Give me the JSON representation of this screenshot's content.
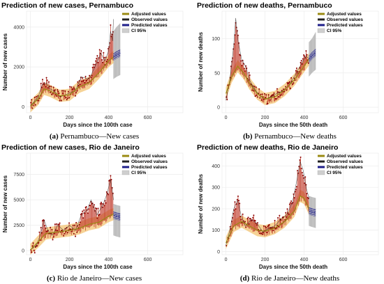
{
  "colors": {
    "adjusted": "#9a8a12",
    "observed": "#222222",
    "predicted": "#1e1e8a",
    "ci": "#cfcfcf",
    "band": "#f2c06a",
    "bars": "#c03a2a",
    "points": "#8b0000"
  },
  "legend": [
    "Adjusted values",
    "Observed values",
    "Predicted values",
    "CI 95%"
  ],
  "chart_data": [
    {
      "type": "line",
      "title": "Prediction of new cases, Pernambuco",
      "xlabel": "Days since the 100th case",
      "ylabel": "Number of new cases",
      "caption_letter": "(a)",
      "caption_text": " Pernambuco—New cases",
      "xlim": [
        -20,
        780
      ],
      "ylim": [
        -300,
        4800
      ],
      "xticks": [
        0,
        200,
        400,
        600
      ],
      "yticks": [
        0,
        2000,
        4000
      ],
      "x_end_obs": 425,
      "x_end_pred": 460,
      "observed": {
        "x": [
          0,
          40,
          60,
          80,
          100,
          120,
          150,
          180,
          200,
          230,
          260,
          300,
          330,
          360,
          380,
          400,
          410,
          420,
          425
        ],
        "y": [
          50,
          500,
          1100,
          1200,
          900,
          800,
          500,
          600,
          700,
          800,
          1500,
          1400,
          2000,
          2700,
          2300,
          2800,
          3800,
          3300,
          4400
        ]
      },
      "adjusted": {
        "x": [
          0,
          40,
          70,
          100,
          150,
          200,
          250,
          300,
          350,
          400,
          425
        ],
        "y": [
          30,
          400,
          900,
          800,
          550,
          600,
          1000,
          1200,
          1700,
          2300,
          2500
        ]
      },
      "predicted": {
        "x": [
          425,
          440,
          460
        ],
        "y": [
          2500,
          2600,
          2700
        ]
      },
      "ci_upper": [
        3800,
        4000,
        4200
      ],
      "ci_lower": [
        1400,
        1500,
        1600
      ]
    },
    {
      "type": "line",
      "title": "Prediction of new deaths, Pernambuco",
      "xlabel": "Days since the 50th death",
      "ylabel": "Number of new deaths",
      "caption_letter": "(b)",
      "caption_text": " Pernambuco—New deaths",
      "xlim": [
        -20,
        780
      ],
      "ylim": [
        -8,
        140
      ],
      "xticks": [
        0,
        200,
        400,
        600
      ],
      "yticks": [
        0,
        50,
        100
      ],
      "x_end_obs": 425,
      "x_end_pred": 460,
      "observed": {
        "x": [
          0,
          20,
          40,
          50,
          60,
          80,
          100,
          120,
          150,
          180,
          200,
          230,
          260,
          300,
          330,
          360,
          390,
          410,
          425
        ],
        "y": [
          10,
          40,
          90,
          130,
          100,
          70,
          60,
          40,
          25,
          15,
          12,
          15,
          20,
          25,
          35,
          50,
          65,
          75,
          70
        ]
      },
      "adjusted": {
        "x": [
          0,
          30,
          60,
          90,
          120,
          160,
          200,
          250,
          300,
          350,
          400,
          425
        ],
        "y": [
          20,
          45,
          60,
          50,
          35,
          20,
          12,
          15,
          25,
          40,
          60,
          70
        ]
      },
      "predicted": {
        "x": [
          425,
          440,
          460
        ],
        "y": [
          70,
          75,
          80
        ]
      },
      "ci_upper": [
        95,
        100,
        110
      ],
      "ci_lower": [
        45,
        50,
        55
      ]
    },
    {
      "type": "line",
      "title": "Prediction of new cases, Rio de Janeiro",
      "xlabel": "Days since the 100th case",
      "ylabel": "Number of new cases",
      "caption_letter": "(c)",
      "caption_text": " Rio de Janeiro—New cases",
      "xlim": [
        -20,
        780
      ],
      "ylim": [
        -400,
        9600
      ],
      "xticks": [
        0,
        200,
        400,
        600
      ],
      "yticks": [
        0,
        2500,
        5000,
        7500
      ],
      "x_end_obs": 425,
      "x_end_pred": 460,
      "observed": {
        "x": [
          0,
          30,
          50,
          70,
          90,
          110,
          140,
          170,
          200,
          230,
          260,
          290,
          310,
          340,
          370,
          390,
          410,
          425
        ],
        "y": [
          100,
          500,
          1500,
          3000,
          2000,
          1500,
          2500,
          2000,
          2500,
          2000,
          3500,
          4000,
          5000,
          3500,
          4500,
          5500,
          7000,
          5000
        ]
      },
      "adjusted": {
        "x": [
          0,
          40,
          80,
          120,
          160,
          200,
          250,
          300,
          350,
          400,
          425
        ],
        "y": [
          80,
          900,
          1700,
          1800,
          1900,
          2000,
          2200,
          2600,
          2800,
          3400,
          3600
        ]
      },
      "predicted": {
        "x": [
          425,
          440,
          460
        ],
        "y": [
          3500,
          3400,
          3300
        ]
      },
      "ci_upper": [
        4600,
        4500,
        4400
      ],
      "ci_lower": [
        1500,
        1400,
        1300
      ]
    },
    {
      "type": "line",
      "title": "Prediction of new deaths, Rio de Janeiro",
      "xlabel": "Days since the 50th death",
      "ylabel": "Number of new deaths",
      "caption_letter": "(d)",
      "caption_text": " Rio de Janeiro—New deaths",
      "xlim": [
        -20,
        780
      ],
      "ylim": [
        -15,
        460
      ],
      "xticks": [
        0,
        200,
        400,
        600
      ],
      "yticks": [
        0,
        100,
        200,
        300,
        400
      ],
      "x_end_obs": 425,
      "x_end_pred": 460,
      "observed": {
        "x": [
          0,
          20,
          40,
          60,
          80,
          100,
          130,
          160,
          190,
          220,
          250,
          280,
          310,
          340,
          360,
          380,
          395,
          410,
          425
        ],
        "y": [
          30,
          100,
          200,
          240,
          160,
          120,
          150,
          130,
          90,
          110,
          120,
          150,
          170,
          230,
          320,
          420,
          380,
          300,
          250
        ]
      },
      "adjusted": {
        "x": [
          0,
          40,
          80,
          120,
          160,
          200,
          250,
          300,
          350,
          380,
          400,
          425
        ],
        "y": [
          40,
          120,
          140,
          120,
          100,
          95,
          110,
          140,
          190,
          260,
          250,
          200
        ]
      },
      "predicted": {
        "x": [
          425,
          440,
          460
        ],
        "y": [
          190,
          185,
          180
        ]
      },
      "ci_upper": [
        260,
        255,
        250
      ],
      "ci_lower": [
        120,
        115,
        110
      ]
    }
  ]
}
